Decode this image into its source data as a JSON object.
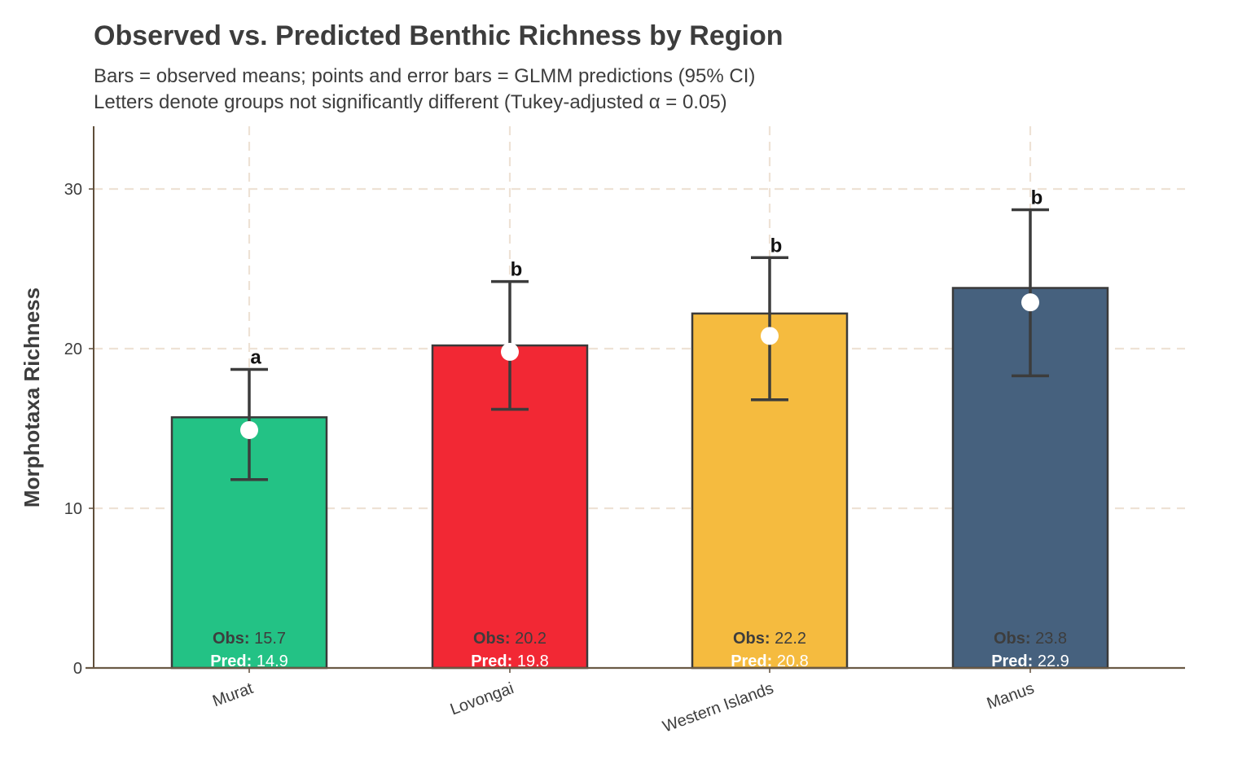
{
  "chart_data": {
    "type": "bar",
    "title": "Observed vs. Predicted Benthic Richness by Region",
    "subtitle_lines": [
      "Bars = observed means; points and error bars = GLMM predictions (95% CI)",
      "Letters denote groups not significantly different (Tukey-adjusted α = 0.05)"
    ],
    "xlabel": "",
    "ylabel": "Morphotaxa Richness",
    "ylim": [
      0,
      34
    ],
    "yticks": [
      0,
      10,
      20,
      30
    ],
    "grid": true,
    "categories": [
      "Murat",
      "Lovongai",
      "Western Islands",
      "Manus"
    ],
    "series": [
      {
        "name": "Observed",
        "values": [
          15.7,
          20.2,
          22.2,
          23.8
        ]
      },
      {
        "name": "Predicted",
        "values": [
          14.9,
          19.8,
          20.8,
          22.9
        ],
        "ci_low": [
          11.8,
          16.2,
          16.8,
          18.3
        ],
        "ci_high": [
          18.7,
          24.2,
          25.7,
          28.7
        ]
      }
    ],
    "letters": [
      "a",
      "b",
      "b",
      "b"
    ],
    "bar_colors": [
      "#23c285",
      "#f22834",
      "#f5bb3f",
      "#46617e"
    ],
    "obs_label": "Obs:",
    "pred_label": "Pred:",
    "obs_texts": [
      "15.7",
      "20.2",
      "22.2",
      "23.8"
    ],
    "pred_texts": [
      "14.9",
      "19.8",
      "20.8",
      "22.9"
    ]
  }
}
